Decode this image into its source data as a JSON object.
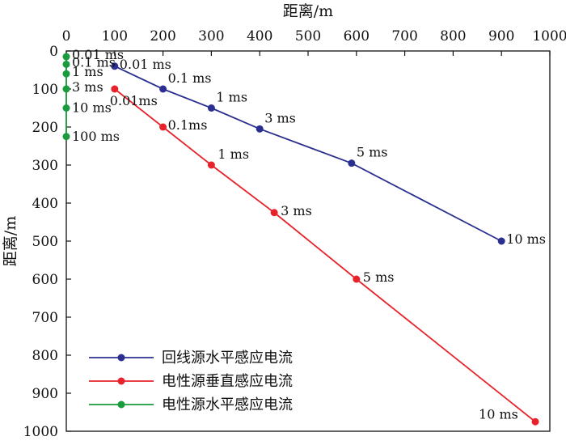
{
  "chart_data": {
    "type": "line",
    "title": "",
    "xlabel": "距离/m",
    "ylabel": "距离/m",
    "xlim": [
      0,
      1000
    ],
    "ylim": [
      0,
      1000
    ],
    "y_inverted": true,
    "x_axis_position": "top",
    "x_ticks": [
      0,
      100,
      200,
      300,
      400,
      500,
      600,
      700,
      800,
      900,
      1000
    ],
    "y_ticks": [
      0,
      100,
      200,
      300,
      400,
      500,
      600,
      700,
      800,
      900,
      1000
    ],
    "grid": false,
    "legend_position": "bottom-left",
    "series": [
      {
        "name": "回线源水平感应电流",
        "color": "#2b2f8f",
        "points": [
          {
            "x": 100,
            "y": 40,
            "label": "0.01 ms"
          },
          {
            "x": 200,
            "y": 100,
            "label": "0.1 ms"
          },
          {
            "x": 300,
            "y": 150,
            "label": "1 ms"
          },
          {
            "x": 400,
            "y": 205,
            "label": "3 ms"
          },
          {
            "x": 590,
            "y": 295,
            "label": "5 ms"
          },
          {
            "x": 900,
            "y": 500,
            "label": "10 ms"
          }
        ]
      },
      {
        "name": "电性源垂直感应电流",
        "color": "#e8222b",
        "points": [
          {
            "x": 100,
            "y": 100,
            "label": "0.01ms"
          },
          {
            "x": 200,
            "y": 200,
            "label": "0.1ms"
          },
          {
            "x": 300,
            "y": 300,
            "label": "1 ms"
          },
          {
            "x": 430,
            "y": 425,
            "label": "3 ms"
          },
          {
            "x": 600,
            "y": 600,
            "label": "5 ms"
          },
          {
            "x": 970,
            "y": 975,
            "label": "10 ms"
          }
        ]
      },
      {
        "name": "电性源水平感应电流",
        "color": "#1a9b3c",
        "points": [
          {
            "x": 0,
            "y": 15,
            "label": "0.01 ms"
          },
          {
            "x": 0,
            "y": 35,
            "label": "0.1 ms"
          },
          {
            "x": 0,
            "y": 60,
            "label": "1 ms"
          },
          {
            "x": 0,
            "y": 100,
            "label": "3 ms"
          },
          {
            "x": 0,
            "y": 150,
            "label": "10 ms"
          },
          {
            "x": 0,
            "y": 225,
            "label": "100 ms"
          }
        ]
      }
    ]
  }
}
